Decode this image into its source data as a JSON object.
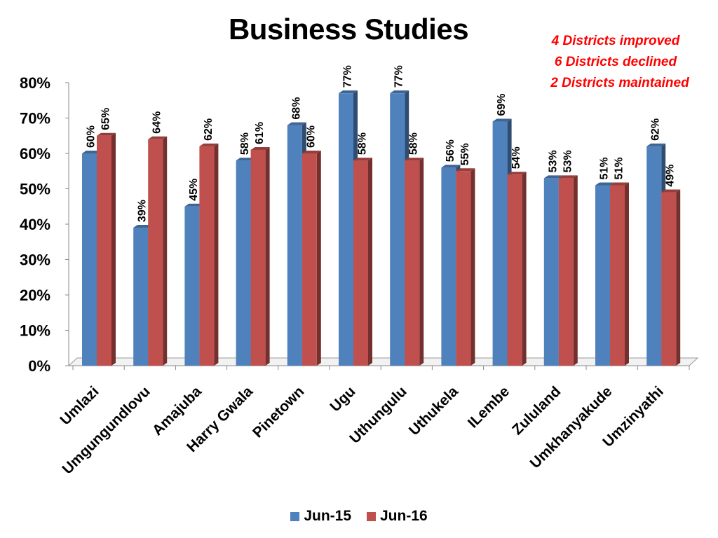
{
  "chart_data": {
    "type": "bar",
    "title": "Business Studies",
    "categories": [
      "Umlazi",
      "Umgungundlovu",
      "Amajuba",
      "Harry Gwala",
      "Pinetown",
      "Ugu",
      "Uthungulu",
      "Uthukela",
      "ILembe",
      "Zululand",
      "Umkhanyakude",
      "Umzinyathi"
    ],
    "series": [
      {
        "name": "Jun-15",
        "color": "#4f81bd",
        "values": [
          60,
          39,
          45,
          58,
          68,
          77,
          77,
          56,
          69,
          53,
          51,
          62
        ]
      },
      {
        "name": "Jun-16",
        "color": "#c0504d",
        "values": [
          65,
          64,
          62,
          61,
          60,
          58,
          58,
          55,
          54,
          53,
          51,
          49
        ]
      }
    ],
    "yticks": [
      "0%",
      "10%",
      "20%",
      "30%",
      "40%",
      "50%",
      "60%",
      "70%",
      "80%"
    ],
    "ylim": [
      0,
      80
    ],
    "data_label_suffix": "%",
    "annotations": [
      "4 Districts improved",
      "6 Districts declined",
      "2 Districts maintained"
    ],
    "legend_position": "bottom",
    "grid": false
  }
}
